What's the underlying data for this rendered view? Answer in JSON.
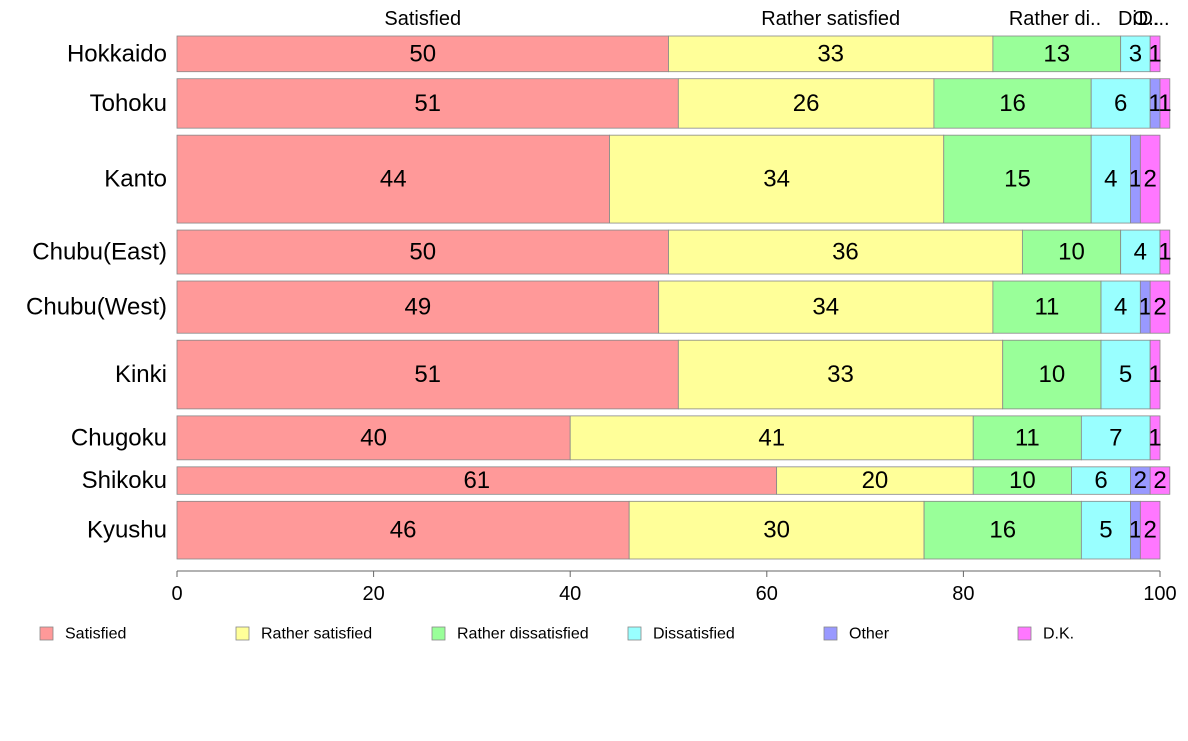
{
  "chart_data": {
    "type": "bar",
    "orientation": "horizontal",
    "stacked": true,
    "percent": true,
    "categories": [
      "Hokkaido",
      "Tohoku",
      "Kanto",
      "Chubu(East)",
      "Chubu(West)",
      "Kinki",
      "Chugoku",
      "Shikoku",
      "Kyushu"
    ],
    "category_weights": [
      0.65,
      0.9,
      1.6,
      0.8,
      0.95,
      1.25,
      0.8,
      0.5,
      1.05
    ],
    "series": [
      {
        "name": "Satisfied",
        "color": "#ff9999",
        "values": [
          50,
          51,
          44,
          50,
          49,
          51,
          40,
          61,
          46
        ]
      },
      {
        "name": "Rather satisfied",
        "color": "#ffff99",
        "values": [
          33,
          26,
          34,
          36,
          34,
          33,
          41,
          20,
          30
        ]
      },
      {
        "name": "Rather dissatisfied",
        "color": "#99ff99",
        "values": [
          13,
          16,
          15,
          10,
          11,
          10,
          11,
          10,
          16
        ]
      },
      {
        "name": "Dissatisfied",
        "color": "#99ffff",
        "values": [
          3,
          6,
          4,
          4,
          4,
          5,
          7,
          6,
          5
        ]
      },
      {
        "name": "Other",
        "color": "#9999ff",
        "values": [
          0,
          1,
          1,
          0,
          1,
          0,
          0,
          2,
          1
        ]
      },
      {
        "name": "D.K.",
        "color": "#ff77ff",
        "values": [
          1,
          1,
          2,
          1,
          2,
          1,
          1,
          2,
          2
        ]
      }
    ],
    "top_labels": [
      "Satisfied",
      "Rather satisfied",
      "Rather di..",
      "Di..",
      "O..",
      "D..."
    ],
    "xlim": [
      0,
      100
    ],
    "xticks": [
      "0",
      "20",
      "40",
      "60",
      "80",
      "100"
    ],
    "legend_position": "bottom",
    "grid": false,
    "title": "",
    "xlabel": "",
    "ylabel": ""
  }
}
